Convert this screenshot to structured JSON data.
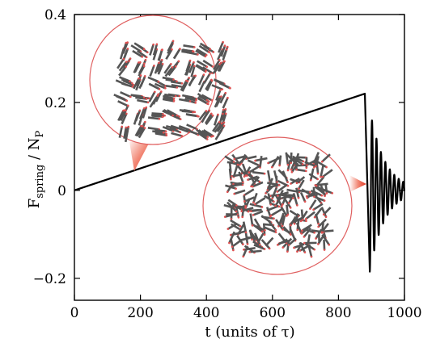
{
  "chart_data": {
    "type": "line",
    "xlabel": {
      "main": "t  (units of ",
      "tau": "τ",
      "close": ")"
    },
    "ylabel": {
      "F": "F",
      "spring_sub": "spring",
      "slash": " / N",
      "p_sub": "P"
    },
    "xlim": [
      0,
      1000
    ],
    "ylim": [
      -0.25,
      0.4
    ],
    "xticks": [
      0,
      200,
      400,
      600,
      800,
      1000
    ],
    "xtick_labels": [
      "0",
      "200",
      "400",
      "600",
      "800",
      "1000"
    ],
    "yticks": [
      -0.2,
      0,
      0.2,
      0.4
    ],
    "ytick_labels": [
      "−0.2",
      "0",
      "0.2",
      "0.4"
    ],
    "grid": false,
    "series": [
      {
        "color": "#000000",
        "ramp": {
          "x": [
            0,
            880
          ],
          "y": [
            0.0,
            0.22
          ]
        },
        "collapse": {
          "x": [
            880,
            895
          ],
          "y": [
            0.22,
            -0.185
          ]
        },
        "oscillation": {
          "x_start": 895,
          "x_end": 1000,
          "center": 0.0,
          "initial_amplitude": 0.185,
          "period": 13.5
        }
      }
    ],
    "insets": [
      {
        "name": "ordered-snapshot",
        "description_color": "#e06060",
        "pointer_at": [
          175,
          0.05
        ]
      },
      {
        "name": "disordered-snapshot",
        "description_color": "#e06060",
        "pointer_at": [
          865,
          0.025
        ]
      }
    ]
  }
}
